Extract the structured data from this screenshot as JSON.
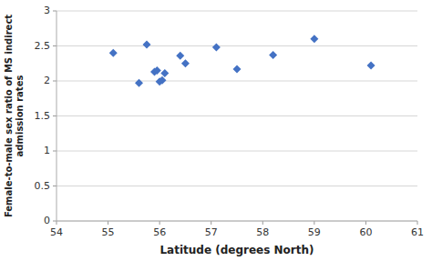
{
  "chart_data": {
    "type": "scatter",
    "x": [
      55.1,
      55.6,
      55.75,
      55.9,
      55.95,
      56.0,
      56.05,
      56.1,
      56.4,
      56.5,
      57.1,
      57.5,
      58.2,
      59.0,
      60.1
    ],
    "values": [
      2.4,
      1.97,
      2.52,
      2.13,
      2.15,
      1.99,
      2.01,
      2.11,
      2.36,
      2.25,
      2.48,
      2.17,
      2.37,
      2.6,
      2.22
    ],
    "color": "#4472C4",
    "marker": "diamond",
    "xlabel": "Latitude (degrees North)",
    "ylabel": "Female-to-male sex ratio of MS indirect\nadmission rates",
    "xlim": [
      54,
      61
    ],
    "ylim": [
      0,
      3
    ],
    "xticks": [
      54,
      55,
      56,
      57,
      58,
      59,
      60,
      61
    ],
    "yticks": [
      0,
      0.5,
      1,
      1.5,
      2,
      2.5,
      3
    ],
    "grid": "y"
  }
}
